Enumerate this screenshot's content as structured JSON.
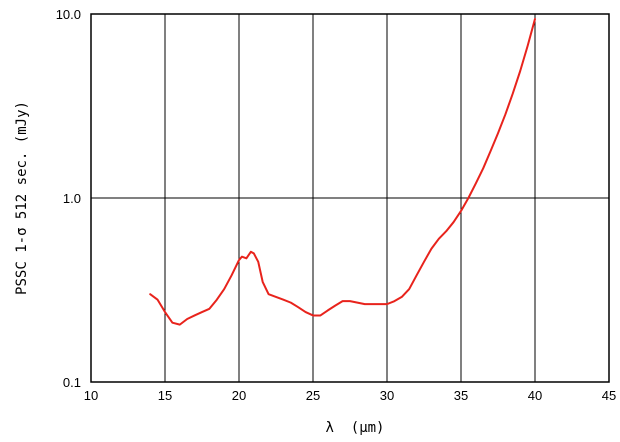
{
  "chart_data": {
    "type": "line",
    "title": "",
    "xlabel": "λ  (μm)",
    "ylabel": "PSSC 1-σ 512 sec. (mJy)",
    "xlim": [
      10,
      45
    ],
    "ylim": [
      0.1,
      10.0
    ],
    "yscale": "log",
    "grid": true,
    "x_ticks": [
      "10",
      "15",
      "20",
      "25",
      "30",
      "35",
      "40",
      "45"
    ],
    "y_ticks": [
      "0.1",
      "1.0",
      "10.0"
    ],
    "line_color": "#e8231c",
    "series": [
      {
        "points": [
          [
            14.0,
            0.3
          ],
          [
            14.5,
            0.28
          ],
          [
            15.0,
            0.24
          ],
          [
            15.5,
            0.21
          ],
          [
            16.0,
            0.205
          ],
          [
            16.5,
            0.22
          ],
          [
            17.0,
            0.23
          ],
          [
            17.5,
            0.24
          ],
          [
            18.0,
            0.25
          ],
          [
            18.5,
            0.28
          ],
          [
            19.0,
            0.32
          ],
          [
            19.5,
            0.38
          ],
          [
            20.0,
            0.46
          ],
          [
            20.2,
            0.48
          ],
          [
            20.5,
            0.47
          ],
          [
            20.8,
            0.51
          ],
          [
            21.0,
            0.5
          ],
          [
            21.3,
            0.45
          ],
          [
            21.6,
            0.35
          ],
          [
            22.0,
            0.3
          ],
          [
            22.5,
            0.29
          ],
          [
            23.0,
            0.28
          ],
          [
            23.5,
            0.27
          ],
          [
            24.0,
            0.255
          ],
          [
            24.5,
            0.24
          ],
          [
            25.0,
            0.23
          ],
          [
            25.5,
            0.23
          ],
          [
            26.0,
            0.245
          ],
          [
            26.5,
            0.26
          ],
          [
            27.0,
            0.275
          ],
          [
            27.5,
            0.275
          ],
          [
            28.0,
            0.27
          ],
          [
            28.5,
            0.265
          ],
          [
            29.0,
            0.265
          ],
          [
            29.5,
            0.265
          ],
          [
            30.0,
            0.265
          ],
          [
            30.5,
            0.275
          ],
          [
            31.0,
            0.29
          ],
          [
            31.5,
            0.32
          ],
          [
            32.0,
            0.38
          ],
          [
            32.5,
            0.45
          ],
          [
            33.0,
            0.53
          ],
          [
            33.5,
            0.6
          ],
          [
            34.0,
            0.66
          ],
          [
            34.5,
            0.74
          ],
          [
            35.0,
            0.85
          ],
          [
            35.5,
            1.0
          ],
          [
            36.0,
            1.2
          ],
          [
            36.5,
            1.45
          ],
          [
            37.0,
            1.8
          ],
          [
            37.5,
            2.25
          ],
          [
            38.0,
            2.85
          ],
          [
            38.5,
            3.7
          ],
          [
            39.0,
            4.9
          ],
          [
            39.5,
            6.7
          ],
          [
            40.0,
            9.4
          ]
        ]
      }
    ]
  }
}
